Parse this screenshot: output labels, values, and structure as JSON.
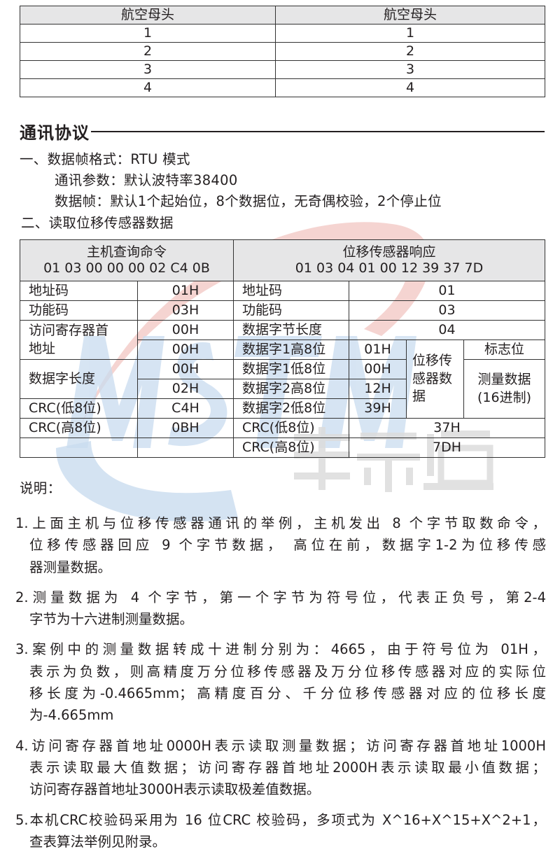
{
  "connector_table": {
    "headers": [
      "航空母头",
      "航空母头"
    ],
    "rows": [
      [
        "1",
        "1"
      ],
      [
        "2",
        "2"
      ],
      [
        "3",
        "3"
      ],
      [
        "4",
        "4"
      ]
    ]
  },
  "section_title": "通讯协议",
  "frame_format": {
    "line1": "一、数据帧格式：RTU 模式",
    "line2": "通讯参数：默认波特率38400",
    "line3": "数据帧：默认1个起始位，8个数据位，无奇偶校验，2个停止位",
    "line4": "二、读取位移传感器数据"
  },
  "protocol_table": {
    "host_header": "主机查询命令",
    "host_bytes": "01 03 00 00 00 02 C4 0B",
    "sensor_header": "位移传感器响应",
    "sensor_bytes": "01 03 04 01 00 12 39 37 7D",
    "host": {
      "addr_label": "地址码",
      "addr": "01H",
      "func_label": "功能码",
      "func": "03H",
      "reg_label": "访问寄存器首地址",
      "reg_hi": "00H",
      "reg_lo": "00H",
      "len_label": "数据字长度",
      "len_hi": "00H",
      "len_lo": "02H",
      "crc_lo_label": "CRC(低8位)",
      "crc_lo": "C4H",
      "crc_hi_label": "CRC(高8位)",
      "crc_hi": "0BH"
    },
    "sensor": {
      "addr_label": "地址码",
      "addr": "01",
      "func_label": "功能码",
      "func": "03",
      "bytes_label": "数据字节长度",
      "bytes": "04",
      "d1h_label": "数据字1高8位",
      "d1h": "01H",
      "d1l_label": "数据字1低8位",
      "d1l": "00H",
      "d2h_label": "数据字2高8位",
      "d2h": "12H",
      "d2l_label": "数据字2低8位",
      "d2l": "39H",
      "group_label": "位移传感器数据",
      "flag_label": "标志位",
      "measure_label": "测量数据(16进制)",
      "crc_lo_label": "CRC(低8位)",
      "crc_lo": "37H",
      "crc_hi_label": "CRC(高8位)",
      "crc_hi": "7DH"
    }
  },
  "notes": {
    "heading": "说明：",
    "items": [
      {
        "lines": [
          "1.上面主机与位移传感器通讯的举例，主机发出 8 个字节取数命令，",
          "位移传感器回应 9 个字节数据， 高位在前，数据字1-2为位移传感",
          "器测量数据。"
        ]
      },
      {
        "lines": [
          "2.测量数据为 4 个字节，第一个字节为符号位，代表正负号，第2-4",
          "字节为十六进制测量数据。"
        ]
      },
      {
        "lines": [
          "3.案例中的测量数据转成十进制分别为：4665，由于符号位为 01H，",
          "表示为负数，则高精度万分位移传感器及万分位移传感器对应的实际位",
          "移长度为-0.4665mm；高精度百分、千分位移传感器对应的位移长度",
          "为-4.665mm"
        ]
      },
      {
        "lines": [
          "4.访问寄存器首地址0000H表示读取测量数据；访问寄存器首地址1000H",
          "表示读取最大值数据；访问寄存器首地址2000H表示读取最小值数据；",
          "访问寄存器首地址3000H表示读取极差值数据。"
        ]
      },
      {
        "lines": [
          "5.本机CRC校验码采用为 16 位CRC 校验码，多项式为 X^16+X^15+X^2+1，",
          "查表算法举例见附录。"
        ]
      }
    ]
  },
  "watermark": {
    "logo_text": "MSTM",
    "brand_text": "美示通",
    "blue": "#c9dcef",
    "red": "#f3c9c6",
    "gray": "#dcdcdc"
  }
}
